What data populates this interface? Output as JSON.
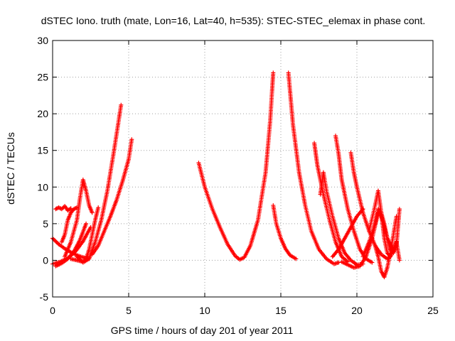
{
  "chart_data": {
    "type": "scatter",
    "title": "dSTEC Iono. truth (mate, Lon=16, Lat=40, h=535): STEC-STEC_elemax in phase cont.",
    "xlabel": "GPS time / hours of day 201 of year 2011",
    "ylabel": "dSTEC  / TECUs",
    "xlim": [
      0,
      25
    ],
    "ylim": [
      -5,
      30
    ],
    "xticks": [
      0,
      5,
      10,
      15,
      20,
      25
    ],
    "yticks": [
      -5,
      0,
      5,
      10,
      15,
      20,
      25,
      30
    ],
    "grid": true,
    "marker": "plus",
    "color": "#ff0000",
    "series": [
      {
        "x": [
          0.0,
          0.4,
          0.8,
          1.2,
          1.6,
          2.0,
          2.2,
          2.4
        ],
        "y": [
          3.0,
          2.2,
          1.6,
          1.1,
          0.7,
          0.4,
          0.3,
          0.2
        ]
      },
      {
        "x": [
          0.0,
          0.5,
          1.0,
          1.5,
          2.0,
          2.5
        ],
        "y": [
          -0.5,
          -0.2,
          0.3,
          1.2,
          2.6,
          4.5
        ]
      },
      {
        "x": [
          0.2,
          0.6,
          1.0,
          1.4,
          1.8,
          2.2
        ],
        "y": [
          -0.8,
          -0.4,
          0.2,
          1.2,
          2.8,
          5.0
        ]
      },
      {
        "x": [
          0.2,
          0.4,
          0.6,
          0.8,
          1.0,
          1.2
        ],
        "y": [
          7.0,
          7.2,
          7.0,
          7.4,
          6.8,
          7.1
        ]
      },
      {
        "x": [
          0.6,
          0.8,
          1.0,
          1.2,
          1.4,
          1.6
        ],
        "y": [
          2.5,
          3.5,
          5.5,
          6.5,
          7.0,
          7.2
        ]
      },
      {
        "x": [
          0.8,
          1.2,
          1.6,
          1.8,
          2.0,
          2.2,
          2.4,
          2.6
        ],
        "y": [
          0.5,
          2.5,
          5.5,
          8.5,
          11.0,
          9.5,
          7.5,
          6.5
        ]
      },
      {
        "x": [
          1.2,
          1.6,
          2.0,
          2.2,
          2.4,
          2.6,
          2.8,
          3.0
        ],
        "y": [
          0.2,
          0.0,
          -0.2,
          0.2,
          1.5,
          3.5,
          5.5,
          7.2
        ]
      },
      {
        "x": [
          1.6,
          2.0,
          2.4,
          2.8,
          3.2,
          3.6,
          4.0,
          4.3,
          4.5
        ],
        "y": [
          0.5,
          -0.3,
          0.2,
          2.5,
          5.5,
          9.5,
          14.5,
          18.5,
          21.2
        ]
      },
      {
        "x": [
          2.6,
          3.0,
          3.4,
          3.8,
          4.2,
          4.6,
          5.0,
          5.2
        ],
        "y": [
          0.8,
          2.0,
          4.0,
          6.0,
          8.2,
          10.8,
          13.8,
          16.5
        ]
      },
      {
        "x": [
          9.6,
          10.0,
          10.5,
          11.0,
          11.5,
          12.0,
          12.3,
          12.6,
          13.0,
          13.5,
          14.0,
          14.3,
          14.5
        ],
        "y": [
          13.3,
          10.0,
          7.0,
          4.5,
          2.2,
          0.6,
          0.1,
          0.4,
          2.0,
          5.5,
          12.0,
          19.0,
          25.6
        ]
      },
      {
        "x": [
          14.5,
          14.7,
          15.0,
          15.3,
          15.6,
          16.0
        ],
        "y": [
          7.5,
          5.0,
          3.0,
          1.6,
          0.7,
          0.2
        ]
      },
      {
        "x": [
          15.5,
          15.8,
          16.2,
          16.6,
          17.0,
          17.5,
          18.0,
          18.5,
          18.8
        ],
        "y": [
          25.6,
          18.5,
          12.0,
          7.5,
          4.0,
          1.5,
          0.2,
          -0.5,
          -0.3
        ]
      },
      {
        "x": [
          17.2,
          17.4,
          17.8,
          18.2,
          18.6,
          19.0,
          19.4
        ],
        "y": [
          16.0,
          13.0,
          9.0,
          5.5,
          2.5,
          0.5,
          -0.2
        ]
      },
      {
        "x": [
          17.6,
          17.8,
          18.0,
          18.4,
          18.8,
          19.2,
          19.6,
          20.0,
          20.4
        ],
        "y": [
          9.0,
          12.0,
          9.5,
          6.0,
          3.0,
          1.0,
          0.0,
          -0.6,
          -0.5
        ]
      },
      {
        "x": [
          18.6,
          18.8,
          19.0,
          19.4,
          19.8,
          20.2,
          20.6,
          21.0
        ],
        "y": [
          17.0,
          14.5,
          11.0,
          7.0,
          4.0,
          1.5,
          0.2,
          -0.3
        ]
      },
      {
        "x": [
          18.4,
          18.8,
          19.2,
          19.6,
          20.0,
          20.4
        ],
        "y": [
          0.5,
          1.5,
          3.0,
          4.5,
          6.0,
          7.0
        ]
      },
      {
        "x": [
          19.6,
          19.8,
          20.0,
          20.4,
          20.8,
          21.2,
          21.6,
          22.0
        ],
        "y": [
          14.7,
          12.0,
          10.0,
          6.5,
          4.0,
          2.0,
          0.8,
          0.2
        ]
      },
      {
        "x": [
          19.0,
          19.4,
          19.8,
          20.2,
          20.6,
          21.0,
          21.4
        ],
        "y": [
          -0.2,
          -0.6,
          -1.0,
          -0.8,
          0.5,
          3.0,
          6.5
        ]
      },
      {
        "x": [
          20.4,
          20.8,
          21.2,
          21.4,
          21.6,
          21.8,
          22.0,
          22.4
        ],
        "y": [
          0.5,
          2.5,
          5.0,
          7.0,
          6.0,
          4.5,
          3.0,
          1.5
        ]
      },
      {
        "x": [
          20.8,
          21.2,
          21.4,
          21.6,
          21.8,
          22.0,
          22.2
        ],
        "y": [
          4.0,
          7.5,
          9.5,
          6.5,
          3.0,
          1.0,
          0.5
        ]
      },
      {
        "x": [
          21.2,
          21.4,
          21.6,
          21.8,
          22.0,
          22.2,
          22.4,
          22.6
        ],
        "y": [
          2.0,
          0.5,
          -1.5,
          -2.3,
          -1.0,
          1.0,
          3.5,
          6.0
        ]
      },
      {
        "x": [
          21.6,
          21.8,
          22.0,
          22.2,
          22.4,
          22.6,
          22.8
        ],
        "y": [
          6.5,
          5.0,
          3.0,
          1.5,
          1.0,
          2.0,
          7.0
        ]
      },
      {
        "x": [
          22.0,
          22.2,
          22.4,
          22.6,
          22.8
        ],
        "y": [
          0.2,
          0.5,
          1.5,
          2.5,
          0.0
        ]
      }
    ]
  }
}
